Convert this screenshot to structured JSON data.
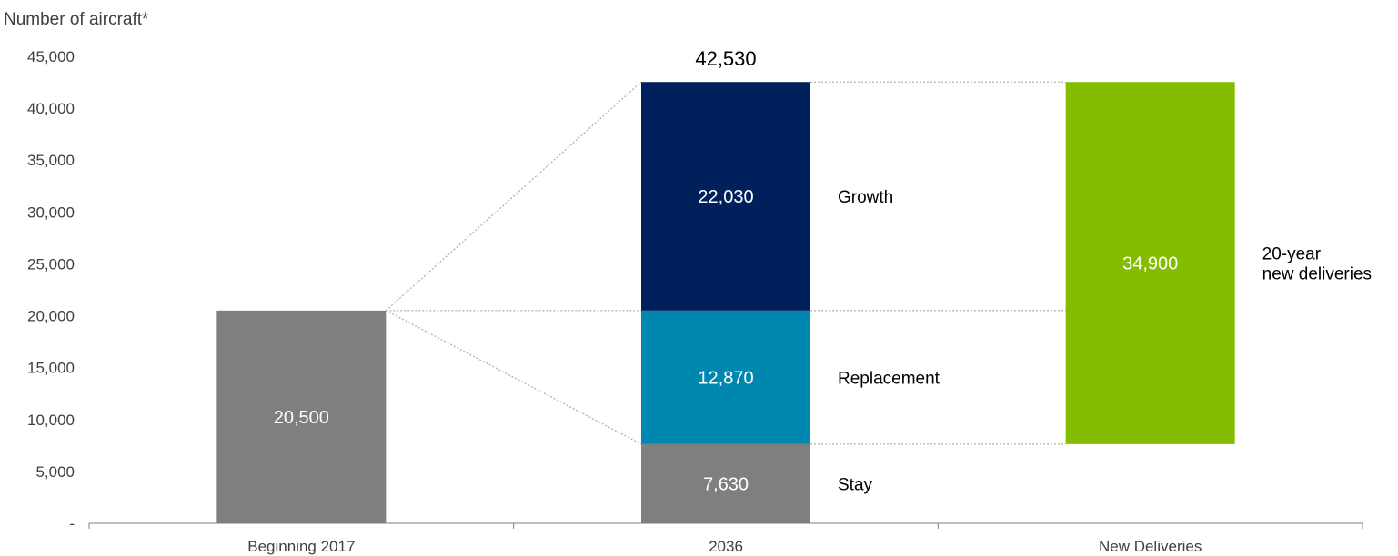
{
  "chart_data": {
    "type": "bar",
    "ylabel": "Number of aircraft*",
    "ylim": [
      0,
      45000
    ],
    "y_ticks": [
      {
        "value": 0,
        "label": "-"
      },
      {
        "value": 5000,
        "label": "5,000"
      },
      {
        "value": 10000,
        "label": "10,000"
      },
      {
        "value": 15000,
        "label": "15,000"
      },
      {
        "value": 20000,
        "label": "20,000"
      },
      {
        "value": 25000,
        "label": "25,000"
      },
      {
        "value": 30000,
        "label": "30,000"
      },
      {
        "value": 35000,
        "label": "35,000"
      },
      {
        "value": 40000,
        "label": "40,000"
      },
      {
        "value": 45000,
        "label": "45,000"
      }
    ],
    "categories": [
      "Beginning 2017",
      "2036",
      "New Deliveries"
    ],
    "segments": [
      {
        "category": "Beginning 2017",
        "base": 0,
        "value": 20500,
        "label": "20,500",
        "color": "#7f7f7f",
        "side_label": ""
      },
      {
        "category": "2036",
        "base": 0,
        "value": 7630,
        "label": "7,630",
        "color": "#7f7f7f",
        "side_label": "Stay"
      },
      {
        "category": "2036",
        "base": 7630,
        "value": 12870,
        "label": "12,870",
        "color": "#0087af",
        "side_label": "Replacement"
      },
      {
        "category": "2036",
        "base": 20500,
        "value": 22030,
        "label": "22,030",
        "color": "#00205b",
        "side_label": "Growth"
      },
      {
        "category": "New Deliveries",
        "base": 7630,
        "value": 34900,
        "label": "34,900",
        "color": "#84bd00",
        "side_label": "20-year\nnew deliveries"
      }
    ],
    "totals": [
      {
        "category": "2036",
        "value": 42530,
        "label": "42,530"
      }
    ],
    "legend": "none",
    "grid": false
  }
}
